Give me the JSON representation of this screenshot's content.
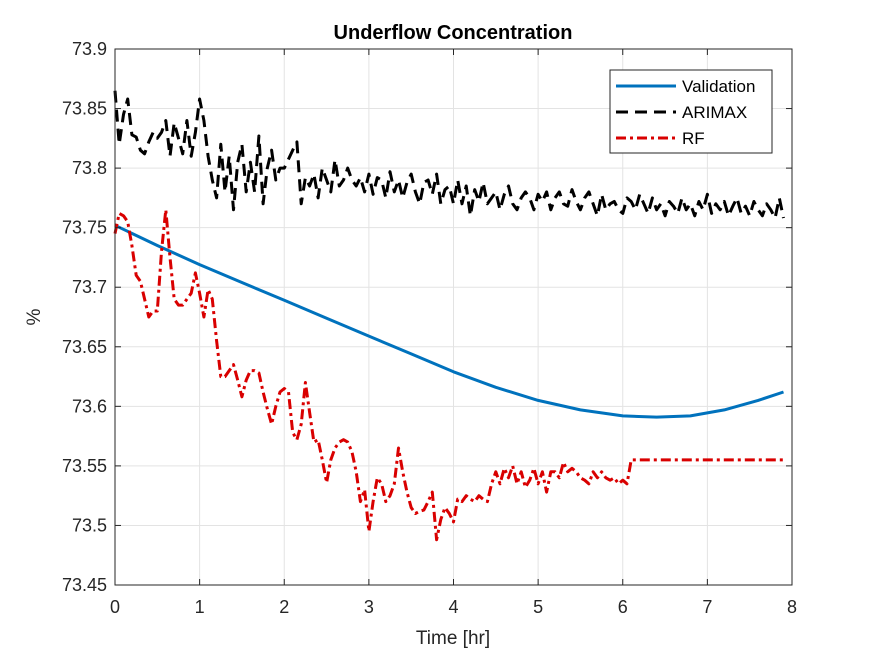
{
  "chart_data": {
    "type": "line",
    "title": "Underflow Concentration",
    "xlabel": "Time [hr]",
    "ylabel": "%",
    "xlim": [
      0,
      8
    ],
    "ylim": [
      73.45,
      73.9
    ],
    "xticks": [
      0,
      1,
      2,
      3,
      4,
      5,
      6,
      7,
      8
    ],
    "xtick_labels": [
      "0",
      "1",
      "2",
      "3",
      "4",
      "5",
      "6",
      "7",
      "8"
    ],
    "yticks": [
      73.45,
      73.5,
      73.55,
      73.6,
      73.65,
      73.7,
      73.75,
      73.8,
      73.85,
      73.9
    ],
    "ytick_labels": [
      "73.45",
      "73.5",
      "73.55",
      "73.6",
      "73.65",
      "73.7",
      "73.75",
      "73.8",
      "73.85",
      "73.9"
    ],
    "grid": true,
    "legend_position": "top-right",
    "series": [
      {
        "name": "Validation",
        "color": "#0072BD",
        "style": "solid",
        "x": [
          0,
          0.5,
          1,
          1.5,
          2,
          2.5,
          3,
          3.5,
          4,
          4.5,
          5,
          5.5,
          6,
          6.4,
          6.8,
          7.2,
          7.6,
          7.9
        ],
        "y": [
          73.752,
          73.735,
          73.719,
          73.704,
          73.689,
          73.674,
          73.659,
          73.644,
          73.629,
          73.616,
          73.605,
          73.597,
          73.592,
          73.591,
          73.592,
          73.597,
          73.605,
          73.612
        ]
      },
      {
        "name": "ARIMAX",
        "color": "#000000",
        "style": "dashed",
        "x": [
          0,
          0.05,
          0.1,
          0.15,
          0.2,
          0.25,
          0.3,
          0.35,
          0.4,
          0.45,
          0.5,
          0.55,
          0.6,
          0.65,
          0.7,
          0.75,
          0.8,
          0.85,
          0.9,
          0.95,
          1.0,
          1.05,
          1.1,
          1.15,
          1.2,
          1.25,
          1.3,
          1.35,
          1.4,
          1.45,
          1.5,
          1.55,
          1.6,
          1.65,
          1.7,
          1.75,
          1.8,
          1.85,
          1.9,
          1.95,
          2.0,
          2.1,
          2.15,
          2.2,
          2.25,
          2.3,
          2.35,
          2.4,
          2.45,
          2.5,
          2.55,
          2.6,
          2.65,
          2.7,
          2.75,
          2.8,
          2.85,
          2.9,
          2.95,
          3.0,
          3.05,
          3.1,
          3.15,
          3.2,
          3.25,
          3.3,
          3.35,
          3.4,
          3.45,
          3.5,
          3.55,
          3.6,
          3.65,
          3.7,
          3.75,
          3.8,
          3.85,
          3.9,
          3.95,
          4.0,
          4.05,
          4.1,
          4.15,
          4.2,
          4.25,
          4.3,
          4.35,
          4.4,
          4.45,
          4.5,
          4.55,
          4.6,
          4.65,
          4.7,
          4.75,
          4.8,
          4.85,
          4.9,
          4.95,
          5.0,
          5.05,
          5.1,
          5.15,
          5.2,
          5.25,
          5.3,
          5.35,
          5.4,
          5.45,
          5.5,
          5.55,
          5.6,
          5.65,
          5.7,
          5.75,
          5.8,
          5.85,
          5.9,
          5.95,
          6.0,
          6.05,
          6.1,
          6.15,
          6.2,
          6.25,
          6.3,
          6.35,
          6.4,
          6.45,
          6.5,
          6.55,
          6.6,
          6.65,
          6.7,
          6.75,
          6.8,
          6.85,
          6.9,
          6.95,
          7.0,
          7.05,
          7.1,
          7.15,
          7.2,
          7.25,
          7.3,
          7.35,
          7.4,
          7.45,
          7.5,
          7.55,
          7.6,
          7.65,
          7.7,
          7.75,
          7.8,
          7.85,
          7.9
        ],
        "y": [
          73.865,
          73.82,
          73.845,
          73.858,
          73.828,
          73.826,
          73.815,
          73.812,
          73.822,
          73.83,
          73.825,
          73.83,
          73.84,
          73.81,
          73.838,
          73.825,
          73.812,
          73.84,
          73.81,
          73.83,
          73.858,
          73.84,
          73.81,
          73.79,
          73.775,
          73.82,
          73.78,
          73.81,
          73.765,
          73.805,
          73.82,
          73.78,
          73.805,
          73.78,
          73.827,
          73.77,
          73.8,
          73.815,
          73.79,
          73.8,
          73.8,
          73.815,
          73.822,
          73.77,
          73.792,
          73.785,
          73.795,
          73.775,
          73.8,
          73.79,
          73.78,
          73.807,
          73.785,
          73.79,
          73.8,
          73.79,
          73.785,
          73.792,
          73.78,
          73.795,
          73.778,
          73.792,
          73.79,
          73.775,
          73.797,
          73.78,
          73.79,
          73.775,
          73.788,
          73.795,
          73.78,
          73.77,
          73.788,
          73.79,
          73.778,
          73.795,
          73.77,
          73.782,
          73.785,
          73.77,
          73.79,
          73.77,
          73.785,
          73.76,
          73.782,
          73.772,
          73.788,
          73.77,
          73.775,
          73.78,
          73.765,
          73.778,
          73.785,
          73.77,
          73.765,
          73.775,
          73.78,
          73.775,
          73.765,
          73.778,
          73.772,
          73.78,
          73.765,
          73.775,
          73.78,
          73.77,
          73.768,
          73.782,
          73.772,
          73.765,
          73.775,
          73.78,
          73.77,
          73.76,
          73.778,
          73.765,
          73.77,
          73.772,
          73.765,
          73.762,
          73.775,
          73.772,
          73.765,
          73.778,
          73.77,
          73.762,
          73.775,
          73.765,
          73.77,
          73.76,
          73.772,
          73.768,
          73.762,
          73.775,
          73.765,
          73.77,
          73.76,
          73.772,
          73.765,
          73.778,
          73.762,
          73.77,
          73.765,
          73.772,
          73.76,
          73.768,
          73.775,
          73.762,
          73.768,
          73.76,
          73.772,
          73.765,
          73.76,
          73.77,
          73.765,
          73.758,
          73.775,
          73.758
        ]
      },
      {
        "name": "RF",
        "color": "#D90000",
        "style": "dashdot",
        "x": [
          0,
          0.05,
          0.1,
          0.15,
          0.2,
          0.25,
          0.3,
          0.35,
          0.4,
          0.45,
          0.5,
          0.55,
          0.6,
          0.65,
          0.7,
          0.75,
          0.8,
          0.85,
          0.9,
          0.95,
          1.0,
          1.05,
          1.1,
          1.15,
          1.2,
          1.25,
          1.3,
          1.35,
          1.4,
          1.45,
          1.5,
          1.55,
          1.6,
          1.65,
          1.7,
          1.75,
          1.8,
          1.85,
          1.9,
          1.95,
          2.0,
          2.05,
          2.1,
          2.15,
          2.2,
          2.25,
          2.3,
          2.35,
          2.4,
          2.45,
          2.5,
          2.55,
          2.6,
          2.65,
          2.7,
          2.75,
          2.8,
          2.85,
          2.9,
          2.95,
          3.0,
          3.05,
          3.1,
          3.15,
          3.2,
          3.25,
          3.3,
          3.35,
          3.4,
          3.45,
          3.5,
          3.55,
          3.6,
          3.65,
          3.7,
          3.75,
          3.8,
          3.85,
          3.9,
          3.95,
          4.0,
          4.05,
          4.1,
          4.15,
          4.2,
          4.25,
          4.3,
          4.35,
          4.4,
          4.45,
          4.5,
          4.55,
          4.6,
          4.65,
          4.7,
          4.75,
          4.8,
          4.85,
          4.9,
          4.95,
          5.0,
          5.05,
          5.1,
          5.15,
          5.2,
          5.25,
          5.3,
          5.35,
          5.4,
          5.45,
          5.5,
          5.55,
          5.6,
          5.65,
          5.7,
          5.75,
          5.8,
          5.85,
          5.9,
          5.95,
          6.0,
          6.05,
          6.1,
          6.5,
          7.0,
          7.5,
          7.9
        ],
        "y": [
          73.745,
          73.762,
          73.76,
          73.755,
          73.735,
          73.71,
          73.705,
          73.69,
          73.675,
          73.68,
          73.68,
          73.73,
          73.765,
          73.725,
          73.69,
          73.685,
          73.685,
          73.69,
          73.695,
          73.712,
          73.695,
          73.675,
          73.698,
          73.69,
          73.655,
          73.625,
          73.625,
          73.63,
          73.635,
          73.622,
          73.608,
          73.622,
          73.63,
          73.63,
          73.628,
          73.612,
          73.598,
          73.585,
          73.6,
          73.612,
          73.615,
          73.612,
          73.578,
          73.572,
          73.585,
          73.62,
          73.595,
          73.57,
          73.572,
          73.555,
          73.536,
          73.555,
          73.565,
          73.57,
          73.572,
          73.57,
          73.562,
          73.545,
          73.52,
          73.53,
          73.495,
          73.52,
          73.54,
          73.535,
          73.52,
          73.525,
          73.535,
          73.565,
          73.545,
          73.528,
          73.515,
          73.51,
          73.512,
          73.513,
          73.52,
          73.528,
          73.488,
          73.505,
          73.515,
          73.51,
          73.503,
          73.522,
          73.52,
          73.525,
          73.522,
          73.52,
          73.525,
          73.522,
          73.52,
          73.535,
          73.545,
          73.535,
          73.548,
          73.54,
          73.55,
          73.535,
          73.545,
          73.532,
          73.538,
          73.548,
          73.535,
          73.545,
          73.528,
          73.545,
          73.545,
          73.54,
          73.553,
          73.545,
          73.548,
          73.545,
          73.54,
          73.538,
          73.535,
          73.545,
          73.54,
          73.545,
          73.54,
          73.538,
          73.54,
          73.535,
          73.538,
          73.535,
          73.555,
          73.555,
          73.555,
          73.555,
          73.555
        ]
      }
    ]
  }
}
